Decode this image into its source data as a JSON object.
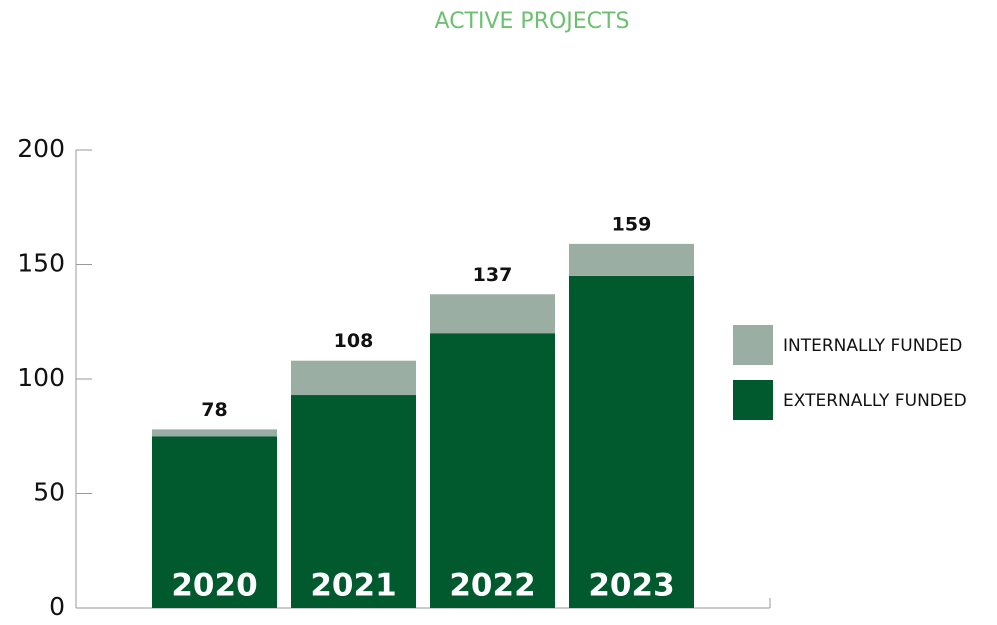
{
  "chart_data": {
    "type": "stacked_bar",
    "title": "ACTIVE PROJECTS",
    "categories": [
      "2020",
      "2021",
      "2022",
      "2023"
    ],
    "series": [
      {
        "name": "EXTERNALLY FUNDED",
        "color": "#005a2e",
        "values": [
          75,
          93,
          120,
          145
        ]
      },
      {
        "name": "INTERNALLY FUNDED",
        "color": "#9aaea4",
        "values": [
          3,
          15,
          17,
          14
        ]
      }
    ],
    "total_labels": [
      78,
      108,
      137,
      159
    ],
    "ylim": [
      0,
      200
    ],
    "yticks": [
      0,
      50,
      100,
      150,
      200
    ],
    "grid": false,
    "legend": "right"
  }
}
